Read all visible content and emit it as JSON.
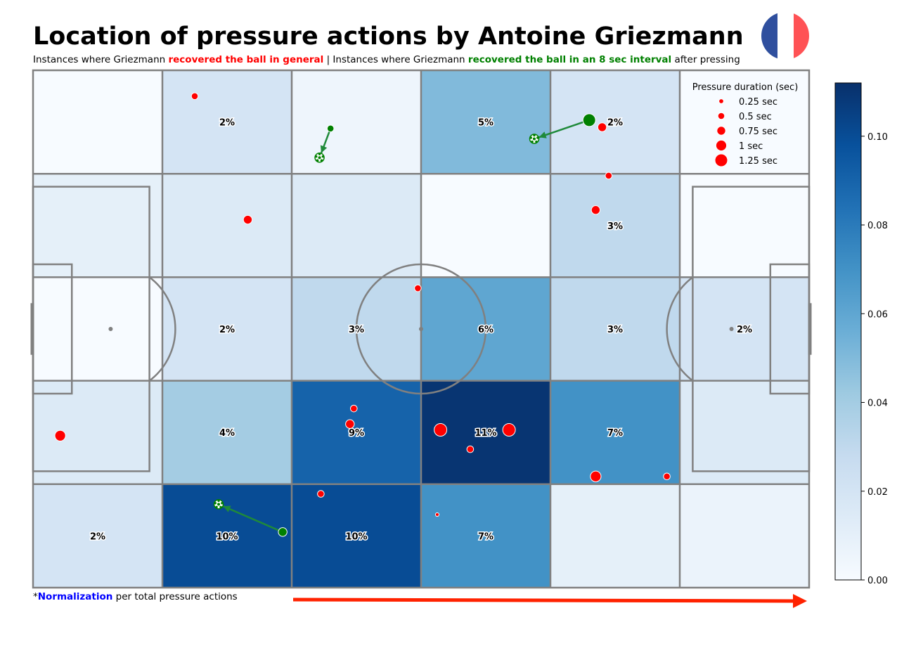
{
  "header": {
    "title": "Location of pressure actions by Antoine Griezmann",
    "subtitle_parts": {
      "p1": "Instances where Griezmann ",
      "p2": "recovered the ball in general",
      "p3": " | Instances where Griezmann ",
      "p4": "recovered the ball in an 8 sec interval",
      "p5": " after pressing"
    }
  },
  "flag": {
    "name": "france-flag",
    "colors": [
      "#2f4f9e",
      "#ffffff",
      "#ff5255"
    ]
  },
  "footnote": {
    "star": "*",
    "bold": "Normalization",
    "rest": " per total pressure actions"
  },
  "colors": {
    "pressure_dot": "#ff0000",
    "recovery": "#008000",
    "recovery_arrow": "#1f8a3a",
    "pitch_lines": "#808080",
    "attack_arrow": "#ff2200"
  },
  "chart_data": {
    "type": "heatmap",
    "grid": {
      "cols": 6,
      "rows": 5
    },
    "cells": [
      [
        0.0,
        0.02,
        0.005,
        0.05,
        0.02,
        0.0
      ],
      [
        0.01,
        0.015,
        0.015,
        0.0,
        0.03,
        0.0
      ],
      [
        0.0,
        0.02,
        0.03,
        0.06,
        0.03,
        0.02
      ],
      [
        0.015,
        0.04,
        0.09,
        0.11,
        0.07,
        0.015
      ],
      [
        0.02,
        0.1,
        0.1,
        0.07,
        0.01,
        0.007
      ]
    ],
    "cell_labels": [
      [
        "",
        "2%",
        "",
        "5%",
        "2%",
        ""
      ],
      [
        "",
        "",
        "",
        "",
        "3%",
        ""
      ],
      [
        "",
        "2%",
        "3%",
        "6%",
        "3%",
        "2%"
      ],
      [
        "",
        "4%",
        "9%",
        "11%",
        "7%",
        ""
      ],
      [
        "2%",
        "10%",
        "10%",
        "7%",
        "",
        ""
      ]
    ],
    "colorbar": {
      "min": 0.0,
      "max": 0.112,
      "ticks": [
        "0.00",
        "0.02",
        "0.04",
        "0.06",
        "0.08",
        "0.10"
      ],
      "tick_values": [
        0,
        0.02,
        0.04,
        0.06,
        0.08,
        0.1
      ]
    },
    "pitch_length": 120,
    "pitch_width": 80,
    "pressures": [
      {
        "x": 25.0,
        "y": 4.0,
        "d": 0.5
      },
      {
        "x": 33.2,
        "y": 23.1,
        "d": 0.75
      },
      {
        "x": 89.0,
        "y": 16.3,
        "d": 0.5
      },
      {
        "x": 88.0,
        "y": 8.8,
        "d": 0.75
      },
      {
        "x": 87.0,
        "y": 21.6,
        "d": 0.75
      },
      {
        "x": 59.5,
        "y": 33.7,
        "d": 0.5
      },
      {
        "x": 4.2,
        "y": 56.5,
        "d": 1.0
      },
      {
        "x": 49.6,
        "y": 52.3,
        "d": 0.5
      },
      {
        "x": 49.0,
        "y": 54.7,
        "d": 0.75
      },
      {
        "x": 63.0,
        "y": 55.6,
        "d": 1.25
      },
      {
        "x": 73.6,
        "y": 55.6,
        "d": 1.25
      },
      {
        "x": 67.6,
        "y": 58.6,
        "d": 0.5
      },
      {
        "x": 87.0,
        "y": 62.8,
        "d": 1.0
      },
      {
        "x": 98.0,
        "y": 62.8,
        "d": 0.5
      },
      {
        "x": 44.5,
        "y": 65.5,
        "d": 0.5
      },
      {
        "x": 62.5,
        "y": 68.7,
        "d": 0.1
      }
    ],
    "recoveries": [
      {
        "x0": 86.0,
        "y0": 7.7,
        "x1": 77.5,
        "y1": 10.6,
        "d": 1.25
      },
      {
        "x0": 46.0,
        "y0": 9.0,
        "x1": 44.3,
        "y1": 13.5,
        "d": 0.5
      },
      {
        "x0": 38.6,
        "y0": 71.4,
        "x1": 28.7,
        "y1": 67.1,
        "d": 0.75
      }
    ],
    "legend": {
      "title": "Pressure duration (sec)",
      "items": [
        {
          "label": "0.25 sec",
          "d": 0.25
        },
        {
          "label": "0.5 sec",
          "d": 0.5
        },
        {
          "label": "0.75 sec",
          "d": 0.75
        },
        {
          "label": "1 sec",
          "d": 1.0
        },
        {
          "label": "1.25 sec",
          "d": 1.25
        }
      ]
    }
  }
}
